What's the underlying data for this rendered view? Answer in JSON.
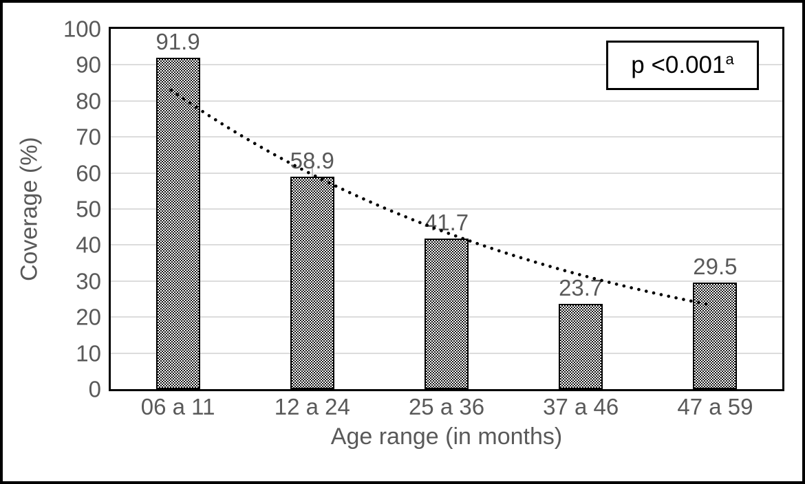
{
  "chart_data": {
    "type": "bar",
    "title": "",
    "xlabel": "Age range (in months)",
    "ylabel": "Coverage (%)",
    "categories": [
      "06 a 11",
      "12 a 24",
      "25 a 36",
      "37 a 46",
      "47 a 59"
    ],
    "values": [
      91.9,
      58.9,
      41.7,
      23.7,
      29.5
    ],
    "data_labels": [
      "91.9",
      "58.9",
      "41.7",
      "23.7",
      "29.5"
    ],
    "ylim": [
      0,
      100
    ],
    "yticks": [
      0,
      10,
      20,
      30,
      40,
      50,
      60,
      70,
      80,
      90,
      100
    ],
    "grid": "horizontal",
    "legend": "none",
    "bar_style": "fine black-and-white checkerboard fill with black outline",
    "trendline": {
      "type": "exponential",
      "style": "dotted",
      "color": "#000000",
      "start_value": 83,
      "end_value": 23.3
    },
    "annotation": {
      "text": "p <0.001",
      "superscript": "a"
    },
    "colors": {
      "axis_text": "#595959",
      "gridline": "#dcdcdc",
      "frame": "#000000",
      "trend_dot": "#000000",
      "background": "#ffffff"
    }
  }
}
